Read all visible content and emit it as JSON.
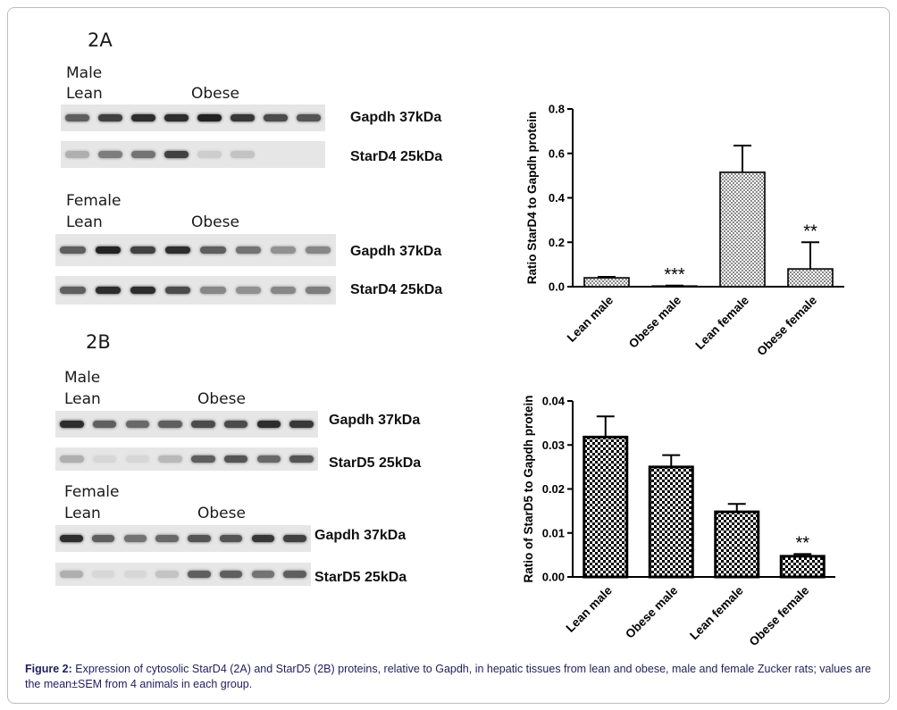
{
  "panels": {
    "a": {
      "label": "2A",
      "male": {
        "sex": "Male",
        "lean": "Lean",
        "obese": "Obese",
        "gapdh": "Gapdh 37kDa",
        "stard": "StarD4 25kDa"
      },
      "female": {
        "sex": "Female",
        "lean": "Lean",
        "obese": "Obese",
        "gapdh": "Gapdh 37kDa",
        "stard": "StarD4 25kDa"
      }
    },
    "b": {
      "label": "2B",
      "male": {
        "sex": "Male",
        "lean": "Lean",
        "obese": "Obese",
        "gapdh": "Gapdh 37kDa",
        "stard": "StarD5 25kDa"
      },
      "female": {
        "sex": "Female",
        "lean": "Lean",
        "obese": "Obese",
        "gapdh": "Gapdh 37kDa",
        "stard": "StarD5 25kDa"
      }
    }
  },
  "blot_intensities": {
    "a_male_gapdh": [
      0.7,
      0.85,
      0.95,
      0.95,
      1.0,
      0.9,
      0.8,
      0.75
    ],
    "a_male_stard": [
      0.3,
      0.55,
      0.6,
      0.85,
      0.15,
      0.2,
      0.0,
      0.0
    ],
    "a_female_gapdh": [
      0.7,
      1.0,
      0.85,
      0.95,
      0.7,
      0.6,
      0.45,
      0.5
    ],
    "a_female_stard": [
      0.7,
      0.95,
      0.95,
      0.8,
      0.5,
      0.45,
      0.5,
      0.55
    ],
    "b_male_gapdh": [
      0.95,
      0.7,
      0.65,
      0.7,
      0.8,
      0.8,
      0.95,
      0.9
    ],
    "b_male_stard": [
      0.3,
      0.1,
      0.1,
      0.25,
      0.7,
      0.75,
      0.65,
      0.75
    ],
    "b_female_gapdh": [
      0.95,
      0.7,
      0.6,
      0.65,
      0.75,
      0.75,
      0.9,
      0.85
    ],
    "b_female_stard": [
      0.3,
      0.1,
      0.1,
      0.2,
      0.7,
      0.7,
      0.6,
      0.7
    ]
  },
  "chart_data": [
    {
      "type": "bar",
      "categories": [
        "Lean male",
        "Obese male",
        "Lean female",
        "Obese female"
      ],
      "values": [
        0.04,
        0.003,
        0.515,
        0.08
      ],
      "errors": [
        0.004,
        0.002,
        0.12,
        0.12
      ],
      "annotations": [
        "",
        "***",
        "",
        "**"
      ],
      "ylabel": "Ratio StarD4 to Gapdh protein",
      "xlabel": "",
      "ylim": [
        0,
        0.8
      ],
      "yticks": [
        0.0,
        0.2,
        0.4,
        0.6,
        0.8
      ],
      "ytick_labels": [
        "0.0",
        "0.2",
        "0.4",
        "0.6",
        "0.8"
      ],
      "pattern": "fine-dotted",
      "grid": false
    },
    {
      "type": "bar",
      "categories": [
        "Lean male",
        "Obese male",
        "Lean female",
        "Obese female"
      ],
      "values": [
        0.0318,
        0.025,
        0.0148,
        0.0047
      ],
      "errors": [
        0.0047,
        0.0027,
        0.0018,
        0.0005
      ],
      "annotations": [
        "",
        "",
        "",
        "**"
      ],
      "ylabel": "Ratio of StarD5 to Gapdh protein",
      "xlabel": "",
      "ylim": [
        0,
        0.04
      ],
      "yticks": [
        0.0,
        0.01,
        0.02,
        0.03,
        0.04
      ],
      "ytick_labels": [
        "0.00",
        "0.01",
        "0.02",
        "0.03",
        "0.04"
      ],
      "pattern": "checkerboard",
      "grid": false
    }
  ],
  "caption": {
    "prefix": "Figure 2:",
    "text": " Expression of cytosolic StarD4 (2A) and StarD5 (2B) proteins, relative to Gapdh, in hepatic tissues from lean and obese, male and female Zucker rats; values are the mean±SEM from 4 animals in each group."
  },
  "colors": {
    "caption_text": "#1f1f5c",
    "bar_outline": "#000000",
    "band_dark": "#1e1e1e",
    "blot_background": "#e6e6e6"
  }
}
